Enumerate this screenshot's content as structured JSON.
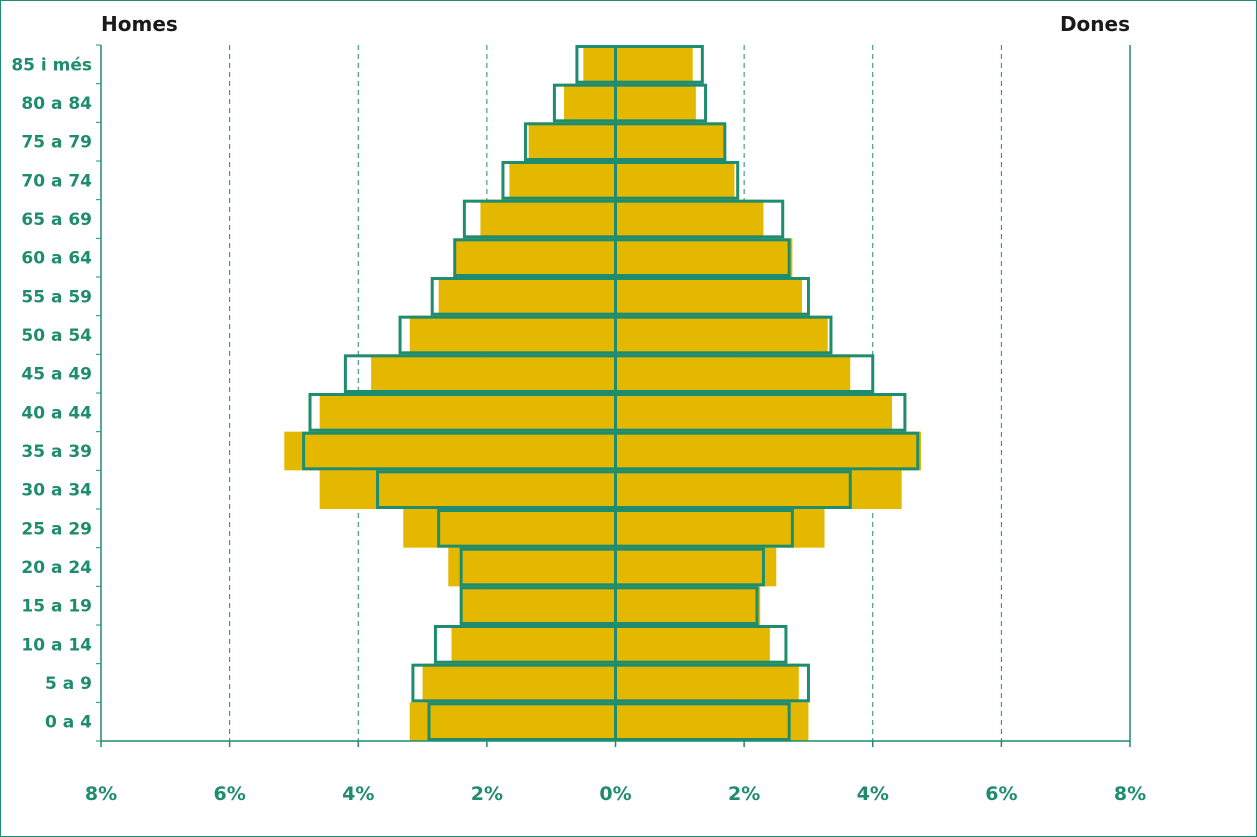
{
  "chart_data": {
    "type": "bar",
    "orientation": "horizontal-population-pyramid",
    "left_label": "Homes",
    "right_label": "Dones",
    "categories": [
      "0 a 4",
      "5 a 9",
      "10 a 14",
      "15 a 19",
      "20 a 24",
      "25 a 29",
      "30 a 34",
      "35 a 39",
      "40 a 44",
      "45 a 49",
      "50 a 54",
      "55 a 59",
      "60 a 64",
      "65 a 69",
      "70 a 74",
      "75 a 79",
      "80 a 84",
      "85 i més"
    ],
    "xticks": [
      "8%",
      "6%",
      "4%",
      "2%",
      "0%",
      "2%",
      "4%",
      "6%",
      "8%"
    ],
    "xlim": [
      -8,
      8
    ],
    "grid": true,
    "series": [
      {
        "style": "filled",
        "color": "#e5b800",
        "men": [
          3.2,
          3.0,
          2.55,
          2.4,
          2.6,
          3.3,
          4.6,
          5.15,
          4.6,
          3.8,
          3.2,
          2.75,
          2.5,
          2.1,
          1.65,
          1.35,
          0.8,
          0.5
        ],
        "women": [
          3.0,
          2.85,
          2.4,
          2.25,
          2.5,
          3.25,
          4.45,
          4.75,
          4.3,
          3.65,
          3.3,
          2.9,
          2.75,
          2.3,
          1.85,
          1.7,
          1.25,
          1.2
        ]
      },
      {
        "style": "outline",
        "color": "#1f8c6e",
        "men": [
          2.9,
          3.15,
          2.8,
          2.4,
          2.4,
          2.75,
          3.7,
          4.85,
          4.75,
          4.2,
          3.35,
          2.85,
          2.5,
          2.35,
          1.75,
          1.4,
          0.95,
          0.6
        ],
        "women": [
          2.7,
          3.0,
          2.65,
          2.2,
          2.3,
          2.75,
          3.65,
          4.7,
          4.5,
          4.0,
          3.35,
          3.0,
          2.7,
          2.6,
          1.9,
          1.7,
          1.4,
          1.35
        ]
      }
    ]
  }
}
